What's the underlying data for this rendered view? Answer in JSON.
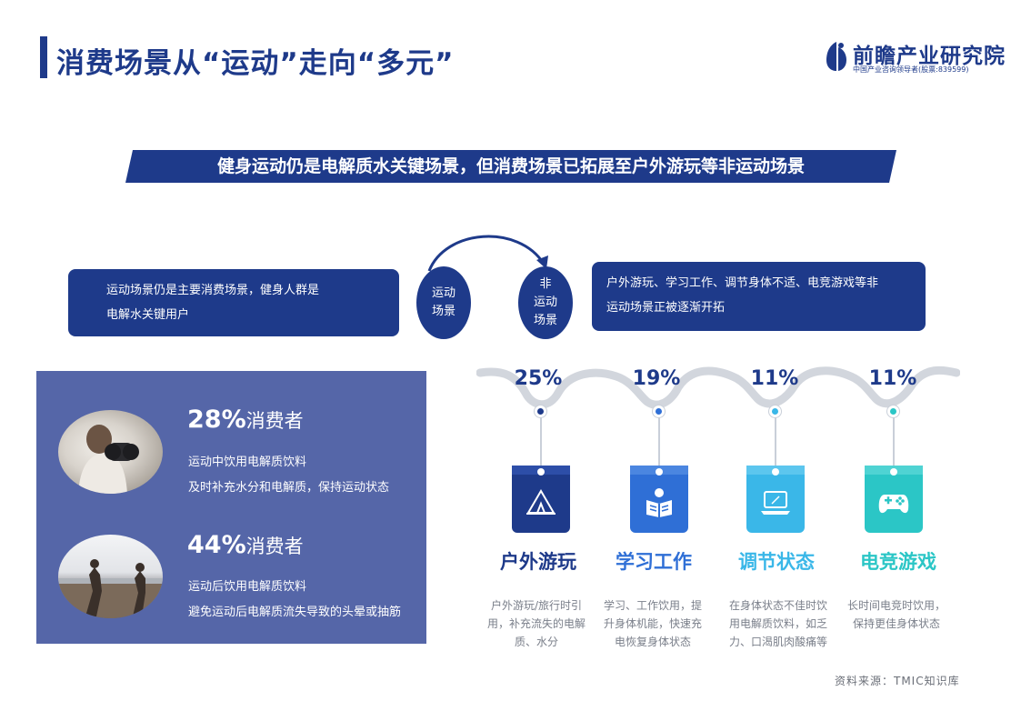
{
  "header": {
    "title": "消费场景从“运动”走向“多元”",
    "logo_name": "前瞻产业研究院",
    "logo_tagline": "中国产业咨询领导者(股票:839599)"
  },
  "banner": {
    "text": "健身运动仍是电解质水关键场景，但消费场景已拓展至户外游玩等非运动场景"
  },
  "transition": {
    "left_box": [
      "运动场景仍是主要消费场景，健身人群是",
      "电解水关键用户"
    ],
    "left_circle": [
      "运动",
      "场景"
    ],
    "right_circle": [
      "非",
      "运动",
      "场景"
    ],
    "right_box": [
      "户外游玩、学习工作、调节身体不适、电竞游戏等非",
      "运动场景正被逐渐开拓"
    ]
  },
  "stats": [
    {
      "percent": "28%",
      "unit": "消费者",
      "line1": "运动中饮用电解质饮料",
      "line2": "及时补充水分和电解质，保持运动状态"
    },
    {
      "percent": "44%",
      "unit": "消费者",
      "line1": "运动后饮用电解质饮料",
      "line2": "避免运动后电解质流失导致的头晕或抽筋"
    }
  ],
  "categories": [
    {
      "percent": "25%",
      "title": "户外游玩",
      "icon": "tent-icon",
      "color": "#1e3a8a",
      "desc": [
        "户外游玩/旅行时引",
        "用，补充流失的电解",
        "质、水分"
      ]
    },
    {
      "percent": "19%",
      "title": "学习工作",
      "icon": "reading-icon",
      "color": "#2f6fd6",
      "desc": [
        "学习、工作饮用，提",
        "升身体机能，快速充",
        "电恢复身体状态"
      ]
    },
    {
      "percent": "11%",
      "title": "调节状态",
      "icon": "laptop-icon",
      "color": "#3ab7e8",
      "desc": [
        "在身体状态不佳时饮",
        "用电解质饮料，如乏",
        "力、口渴肌肉酸痛等"
      ]
    },
    {
      "percent": "11%",
      "title": "电竞游戏",
      "icon": "gamepad-icon",
      "color": "#2bc6c6",
      "desc": [
        "长时间电竞时饮用，",
        "保持更佳身体状态"
      ]
    }
  ],
  "source": "资料来源：TMIC知识库"
}
